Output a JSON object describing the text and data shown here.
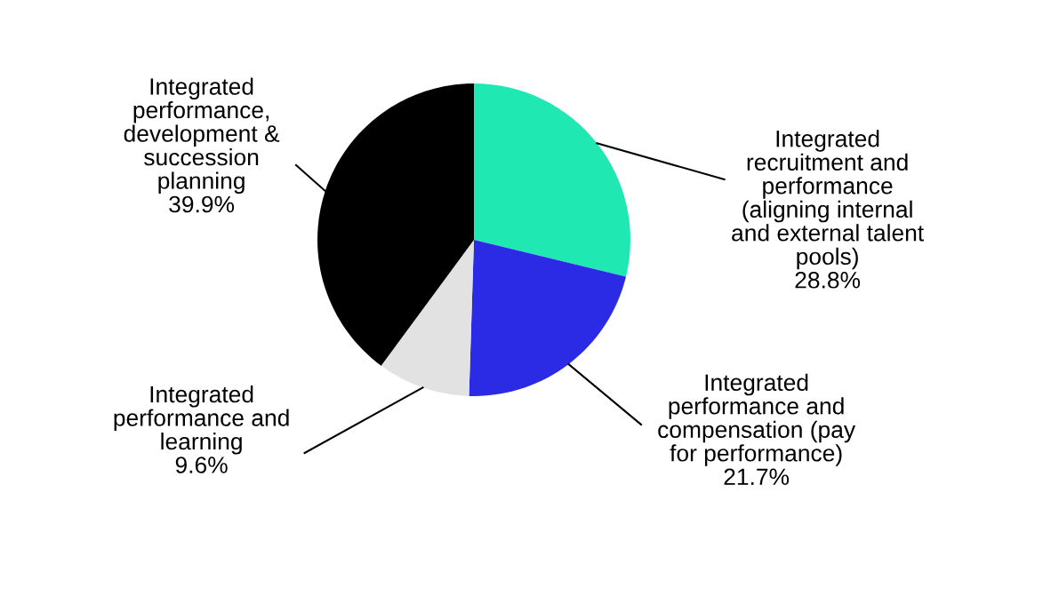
{
  "chart_data": {
    "type": "pie",
    "categories": [
      "Integrated\nrecruitment and\nperformance\n(aligning internal\nand external talent\npools)",
      "Integrated\nperformance and\ncompensation (pay\nfor performance)",
      "Integrated\nperformance and\nlearning",
      "Integrated\nperformance,\ndevelopment &\nsuccession\nplanning"
    ],
    "values": [
      28.8,
      21.7,
      9.6,
      39.9
    ],
    "value_labels": [
      "28.8%",
      "21.7%",
      "9.6%",
      "39.9%"
    ],
    "colors": [
      "#1fe8b2",
      "#2b2be6",
      "#e2e2e2",
      "#000000"
    ]
  }
}
